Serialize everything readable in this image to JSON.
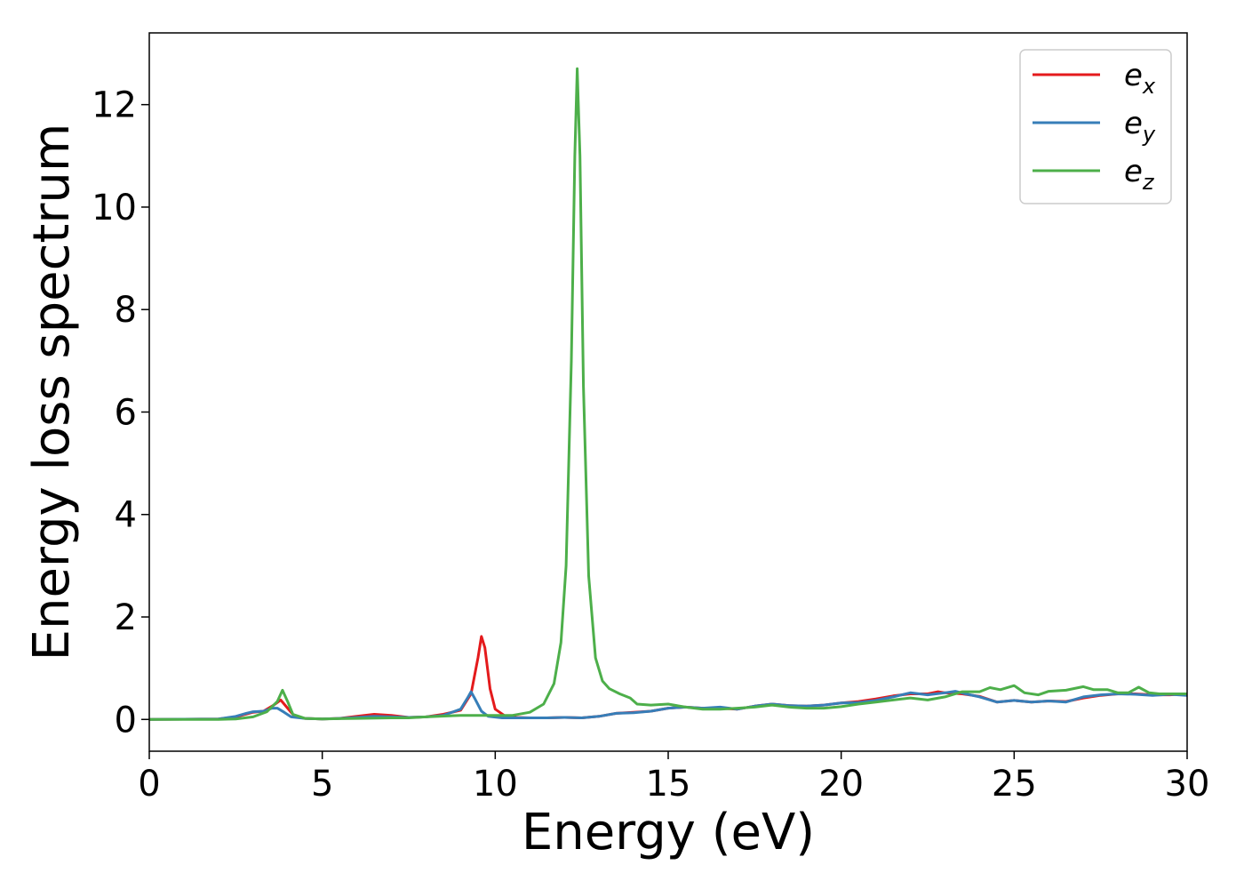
{
  "chart_data": {
    "type": "line",
    "xlabel": "Energy (eV)",
    "ylabel": "Energy loss spectrum",
    "xlim": [
      0,
      30
    ],
    "ylim": [
      -0.62,
      13.4
    ],
    "xticks": [
      0,
      5,
      10,
      15,
      20,
      25,
      30
    ],
    "yticks": [
      0,
      2,
      4,
      6,
      8,
      10,
      12
    ],
    "grid": false,
    "legend_position": "top-right",
    "series": [
      {
        "name": "e_x",
        "legend_base": "e",
        "legend_sub": "x",
        "color": "#e41a1c",
        "points": [
          [
            0,
            0
          ],
          [
            2,
            0.01
          ],
          [
            2.5,
            0.05
          ],
          [
            3,
            0.14
          ],
          [
            3.3,
            0.16
          ],
          [
            3.6,
            0.28
          ],
          [
            3.8,
            0.38
          ],
          [
            4.0,
            0.22
          ],
          [
            4.2,
            0.06
          ],
          [
            4.5,
            0.02
          ],
          [
            5.0,
            0.01
          ],
          [
            5.5,
            0.02
          ],
          [
            6.0,
            0.06
          ],
          [
            6.5,
            0.1
          ],
          [
            7.0,
            0.08
          ],
          [
            7.5,
            0.04
          ],
          [
            8.0,
            0.05
          ],
          [
            8.5,
            0.1
          ],
          [
            9.0,
            0.18
          ],
          [
            9.3,
            0.5
          ],
          [
            9.5,
            1.2
          ],
          [
            9.6,
            1.62
          ],
          [
            9.7,
            1.4
          ],
          [
            9.85,
            0.6
          ],
          [
            10.0,
            0.2
          ],
          [
            10.3,
            0.06
          ],
          [
            10.6,
            0.04
          ],
          [
            11.0,
            0.03
          ],
          [
            11.5,
            0.03
          ],
          [
            12.0,
            0.04
          ],
          [
            12.5,
            0.03
          ],
          [
            13.0,
            0.06
          ],
          [
            13.5,
            0.12
          ],
          [
            14.0,
            0.14
          ],
          [
            14.5,
            0.16
          ],
          [
            15.0,
            0.22
          ],
          [
            15.5,
            0.24
          ],
          [
            16.0,
            0.22
          ],
          [
            16.5,
            0.22
          ],
          [
            17.0,
            0.2
          ],
          [
            17.5,
            0.26
          ],
          [
            18.0,
            0.3
          ],
          [
            18.5,
            0.27
          ],
          [
            19.0,
            0.26
          ],
          [
            19.5,
            0.28
          ],
          [
            20.0,
            0.32
          ],
          [
            20.5,
            0.35
          ],
          [
            21.0,
            0.4
          ],
          [
            21.5,
            0.46
          ],
          [
            22.0,
            0.5
          ],
          [
            22.5,
            0.5
          ],
          [
            22.8,
            0.54
          ],
          [
            23.0,
            0.52
          ],
          [
            23.5,
            0.5
          ],
          [
            24.0,
            0.45
          ],
          [
            24.5,
            0.34
          ],
          [
            25.0,
            0.37
          ],
          [
            25.5,
            0.34
          ],
          [
            26.0,
            0.36
          ],
          [
            26.5,
            0.35
          ],
          [
            27.0,
            0.42
          ],
          [
            27.5,
            0.47
          ],
          [
            28.0,
            0.5
          ],
          [
            28.5,
            0.5
          ],
          [
            29.0,
            0.48
          ],
          [
            29.5,
            0.48
          ],
          [
            30.0,
            0.5
          ]
        ]
      },
      {
        "name": "e_y",
        "legend_base": "e",
        "legend_sub": "y",
        "color": "#377eb8",
        "points": [
          [
            0,
            0
          ],
          [
            2,
            0.01
          ],
          [
            2.5,
            0.06
          ],
          [
            2.8,
            0.12
          ],
          [
            3.0,
            0.15
          ],
          [
            3.3,
            0.16
          ],
          [
            3.55,
            0.22
          ],
          [
            3.7,
            0.22
          ],
          [
            3.9,
            0.14
          ],
          [
            4.1,
            0.05
          ],
          [
            4.5,
            0.02
          ],
          [
            5.0,
            0.01
          ],
          [
            5.5,
            0.02
          ],
          [
            6.0,
            0.04
          ],
          [
            6.5,
            0.06
          ],
          [
            7.0,
            0.05
          ],
          [
            7.5,
            0.04
          ],
          [
            8.0,
            0.05
          ],
          [
            8.5,
            0.08
          ],
          [
            9.0,
            0.2
          ],
          [
            9.2,
            0.42
          ],
          [
            9.3,
            0.54
          ],
          [
            9.4,
            0.42
          ],
          [
            9.6,
            0.16
          ],
          [
            9.8,
            0.06
          ],
          [
            10.2,
            0.03
          ],
          [
            10.6,
            0.03
          ],
          [
            11.0,
            0.03
          ],
          [
            11.5,
            0.03
          ],
          [
            12.0,
            0.04
          ],
          [
            12.5,
            0.03
          ],
          [
            13.0,
            0.06
          ],
          [
            13.5,
            0.12
          ],
          [
            14.0,
            0.13
          ],
          [
            14.5,
            0.16
          ],
          [
            15.0,
            0.22
          ],
          [
            15.5,
            0.24
          ],
          [
            16.0,
            0.22
          ],
          [
            16.5,
            0.24
          ],
          [
            17.0,
            0.2
          ],
          [
            17.5,
            0.26
          ],
          [
            18.0,
            0.3
          ],
          [
            18.5,
            0.27
          ],
          [
            19.0,
            0.26
          ],
          [
            19.5,
            0.28
          ],
          [
            20.0,
            0.32
          ],
          [
            20.5,
            0.33
          ],
          [
            21.0,
            0.37
          ],
          [
            21.5,
            0.44
          ],
          [
            22.0,
            0.52
          ],
          [
            22.5,
            0.48
          ],
          [
            23.0,
            0.52
          ],
          [
            23.3,
            0.55
          ],
          [
            23.6,
            0.5
          ],
          [
            24.0,
            0.44
          ],
          [
            24.5,
            0.34
          ],
          [
            25.0,
            0.37
          ],
          [
            25.5,
            0.34
          ],
          [
            26.0,
            0.36
          ],
          [
            26.5,
            0.34
          ],
          [
            27.0,
            0.44
          ],
          [
            27.5,
            0.48
          ],
          [
            28.0,
            0.5
          ],
          [
            28.5,
            0.49
          ],
          [
            29.0,
            0.47
          ],
          [
            29.5,
            0.49
          ],
          [
            30.0,
            0.47
          ]
        ]
      },
      {
        "name": "e_z",
        "legend_base": "e",
        "legend_sub": "z",
        "color": "#4daf4a",
        "points": [
          [
            0,
            0
          ],
          [
            2,
            0.0
          ],
          [
            2.5,
            0.01
          ],
          [
            3.0,
            0.05
          ],
          [
            3.4,
            0.15
          ],
          [
            3.7,
            0.35
          ],
          [
            3.85,
            0.57
          ],
          [
            4.0,
            0.35
          ],
          [
            4.15,
            0.1
          ],
          [
            4.5,
            0.02
          ],
          [
            5.0,
            0.01
          ],
          [
            6.0,
            0.02
          ],
          [
            7.0,
            0.03
          ],
          [
            7.5,
            0.03
          ],
          [
            8.0,
            0.05
          ],
          [
            9.0,
            0.08
          ],
          [
            10.0,
            0.08
          ],
          [
            10.5,
            0.08
          ],
          [
            11.0,
            0.14
          ],
          [
            11.4,
            0.3
          ],
          [
            11.7,
            0.7
          ],
          [
            11.9,
            1.5
          ],
          [
            12.05,
            3.0
          ],
          [
            12.2,
            7.0
          ],
          [
            12.3,
            11.0
          ],
          [
            12.37,
            12.7
          ],
          [
            12.45,
            11.0
          ],
          [
            12.55,
            6.5
          ],
          [
            12.7,
            2.8
          ],
          [
            12.9,
            1.2
          ],
          [
            13.1,
            0.75
          ],
          [
            13.3,
            0.6
          ],
          [
            13.6,
            0.5
          ],
          [
            13.9,
            0.42
          ],
          [
            14.1,
            0.3
          ],
          [
            14.5,
            0.28
          ],
          [
            15.0,
            0.3
          ],
          [
            15.5,
            0.24
          ],
          [
            16.0,
            0.2
          ],
          [
            16.5,
            0.2
          ],
          [
            17.0,
            0.22
          ],
          [
            17.5,
            0.24
          ],
          [
            18.0,
            0.28
          ],
          [
            18.5,
            0.24
          ],
          [
            19.0,
            0.22
          ],
          [
            19.5,
            0.22
          ],
          [
            20.0,
            0.25
          ],
          [
            20.5,
            0.3
          ],
          [
            21.0,
            0.34
          ],
          [
            21.5,
            0.38
          ],
          [
            22.0,
            0.42
          ],
          [
            22.5,
            0.38
          ],
          [
            23.0,
            0.44
          ],
          [
            23.5,
            0.54
          ],
          [
            24.0,
            0.54
          ],
          [
            24.3,
            0.62
          ],
          [
            24.6,
            0.58
          ],
          [
            25.0,
            0.66
          ],
          [
            25.3,
            0.52
          ],
          [
            25.7,
            0.48
          ],
          [
            26.0,
            0.55
          ],
          [
            26.5,
            0.57
          ],
          [
            27.0,
            0.64
          ],
          [
            27.3,
            0.58
          ],
          [
            27.7,
            0.58
          ],
          [
            28.0,
            0.52
          ],
          [
            28.3,
            0.52
          ],
          [
            28.6,
            0.63
          ],
          [
            28.9,
            0.52
          ],
          [
            29.2,
            0.5
          ],
          [
            29.6,
            0.5
          ],
          [
            30.0,
            0.5
          ]
        ]
      }
    ]
  }
}
